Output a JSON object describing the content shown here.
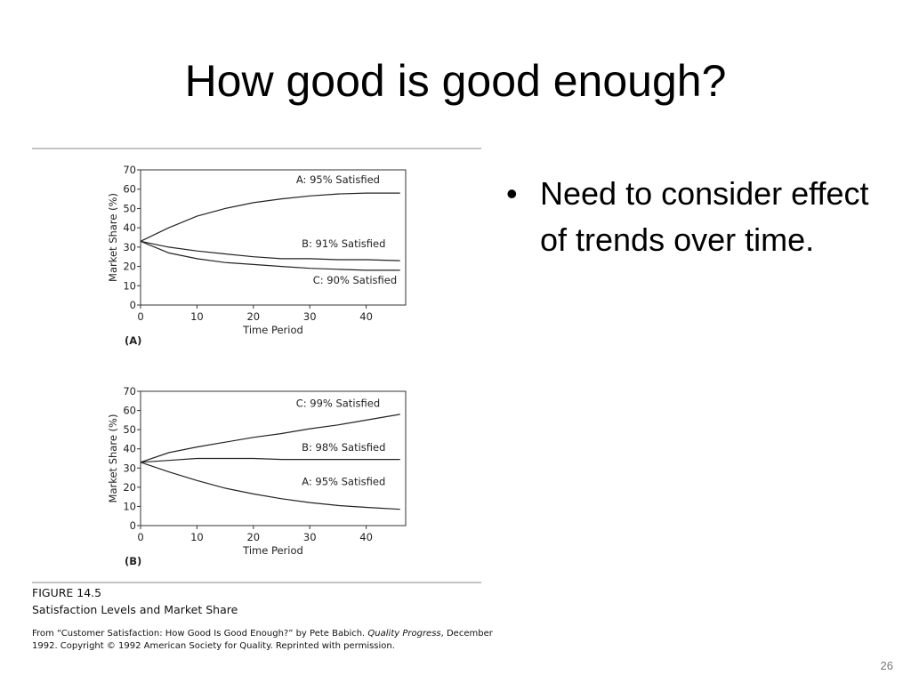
{
  "slide": {
    "title": "How good is good enough?",
    "bullets": [
      "Need to consider effect of trends over time."
    ],
    "page_number": "26"
  },
  "figure": {
    "label": "FIGURE 14.5",
    "caption": "Satisfaction Levels and Market Share",
    "source_line1_prefix": "From “Customer Satisfaction: How Good Is Good Enough?” by Pete Babich. ",
    "source_line1_journal": "Quality Progress",
    "source_line1_suffix": ", December",
    "source_line2": "1992. Copyright © 1992 American Society for Quality. Reprinted with permission."
  },
  "chart_data": [
    {
      "type": "line",
      "panel_label": "(A)",
      "xlabel": "Time Period",
      "ylabel": "Market Share (%)",
      "xlim": [
        0,
        47
      ],
      "ylim": [
        0,
        70
      ],
      "xticks": [
        0,
        10,
        20,
        30,
        40
      ],
      "yticks": [
        0,
        10,
        20,
        30,
        40,
        50,
        60,
        70
      ],
      "grid": false,
      "series": [
        {
          "name": "A: 95% Satisfied",
          "x": [
            0,
            5,
            10,
            15,
            20,
            25,
            30,
            35,
            40,
            46
          ],
          "y": [
            33,
            40,
            46,
            50,
            53,
            55,
            56.5,
            57.5,
            58,
            58
          ],
          "label_at": [
            35,
            63
          ]
        },
        {
          "name": "B: 91% Satisfied",
          "x": [
            0,
            5,
            10,
            15,
            20,
            25,
            30,
            35,
            40,
            46
          ],
          "y": [
            33,
            30,
            28,
            26.5,
            25,
            24,
            24,
            23.5,
            23.5,
            23
          ],
          "label_at": [
            36,
            30
          ]
        },
        {
          "name": "C: 90% Satisfied",
          "x": [
            0,
            5,
            10,
            15,
            20,
            25,
            30,
            35,
            40,
            46
          ],
          "y": [
            33,
            27,
            24,
            22,
            21,
            20,
            19,
            18.5,
            18,
            18
          ],
          "label_at": [
            38,
            11
          ]
        }
      ]
    },
    {
      "type": "line",
      "panel_label": "(B)",
      "xlabel": "Time Period",
      "ylabel": "Market Share (%)",
      "xlim": [
        0,
        47
      ],
      "ylim": [
        0,
        70
      ],
      "xticks": [
        0,
        10,
        20,
        30,
        40
      ],
      "yticks": [
        0,
        10,
        20,
        30,
        40,
        50,
        60,
        70
      ],
      "grid": false,
      "series": [
        {
          "name": "C: 99% Satisfied",
          "x": [
            0,
            5,
            10,
            15,
            20,
            25,
            30,
            35,
            40,
            46
          ],
          "y": [
            33,
            38,
            41,
            43.5,
            46,
            48,
            50.5,
            52.5,
            55,
            58
          ],
          "label_at": [
            35,
            62
          ]
        },
        {
          "name": "B: 98% Satisfied",
          "x": [
            0,
            5,
            10,
            15,
            20,
            25,
            30,
            35,
            40,
            46
          ],
          "y": [
            33,
            34,
            35,
            35,
            35,
            34.5,
            34.5,
            34.5,
            34.5,
            34.5
          ],
          "label_at": [
            36,
            39
          ]
        },
        {
          "name": "A: 95% Satisfied",
          "x": [
            0,
            5,
            10,
            15,
            20,
            25,
            30,
            35,
            40,
            46
          ],
          "y": [
            33,
            28,
            23.5,
            19.5,
            16.5,
            14,
            12,
            10.5,
            9.5,
            8.5
          ],
          "label_at": [
            36,
            21
          ]
        }
      ]
    }
  ]
}
